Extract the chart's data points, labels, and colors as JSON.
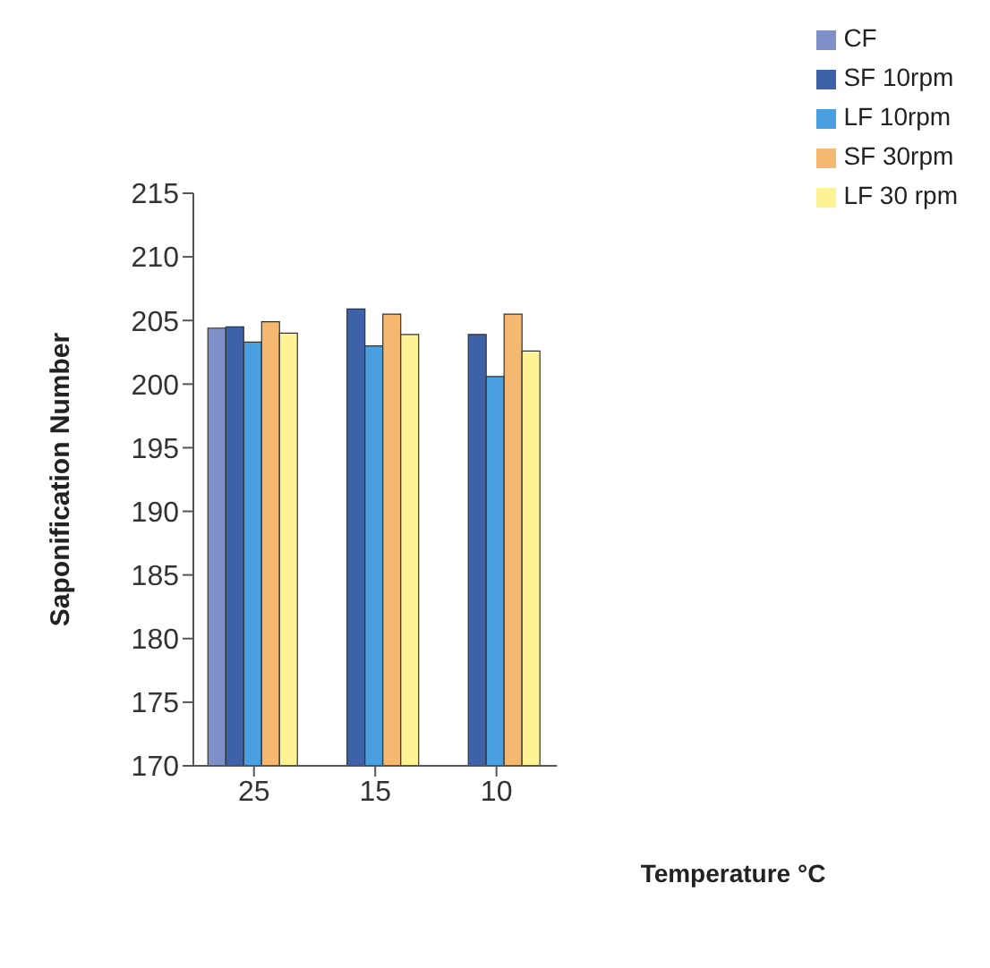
{
  "chart_data": {
    "type": "bar",
    "xlabel": "Temperature °C",
    "ylabel": "Saponification Number",
    "categories": [
      "25",
      "15",
      "10"
    ],
    "series": [
      {
        "name": "CF",
        "color": "#7f8fc8",
        "values": [
          204.4,
          null,
          null
        ]
      },
      {
        "name": "SF 10rpm",
        "color": "#3d62a8",
        "values": [
          204.5,
          205.9,
          203.9
        ]
      },
      {
        "name": "LF 10rpm",
        "color": "#4a9fe0",
        "values": [
          203.3,
          203.0,
          200.6
        ]
      },
      {
        "name": "SF 30rpm",
        "color": "#f5b870",
        "values": [
          204.9,
          205.5,
          205.5
        ]
      },
      {
        "name": "LF 30 rpm",
        "color": "#fdf294",
        "values": [
          204.0,
          203.9,
          202.6
        ]
      }
    ],
    "ylim": [
      170,
      215
    ],
    "yticks": [
      170,
      175,
      180,
      185,
      190,
      195,
      200,
      205,
      210,
      215
    ],
    "grid": false,
    "legend": "top right"
  }
}
